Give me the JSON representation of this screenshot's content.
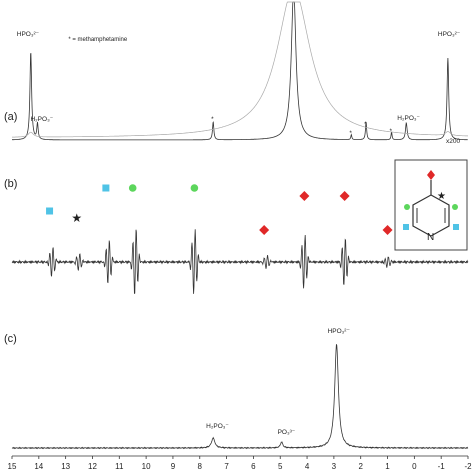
{
  "chart_data": [
    {
      "panel": "(a)",
      "type": "line",
      "annotations": [
        {
          "text": "HPO₃²⁻",
          "ppm": 14.3
        },
        {
          "text": "H₂PO₃⁻",
          "ppm": 14.0
        },
        {
          "text": "* = methamphetamine",
          "ppm": 12.9
        },
        {
          "text": "*",
          "ppm": 7.5
        },
        {
          "text": "*",
          "ppm": 2.35
        },
        {
          "text": "*",
          "ppm": 1.8
        },
        {
          "text": "*",
          "ppm": 0.85
        },
        {
          "text": "H₂PO₃⁻",
          "ppm": 0.3
        },
        {
          "text": "HPO₃²⁻",
          "ppm": -1.25
        }
      ],
      "scale_label": "x200",
      "peaks_ppm": [
        14.3,
        14.0,
        7.5,
        4.5,
        2.35,
        1.8,
        0.85,
        0.3,
        -1.25
      ]
    },
    {
      "panel": "(b)",
      "type": "line",
      "signals_ppm": [
        13.5,
        12.5,
        11.4,
        10.4,
        8.2,
        5.5,
        4.1,
        2.6,
        1.0
      ],
      "markers": [
        {
          "shape": "square",
          "color": "#4fc3e6",
          "ppm": 13.6
        },
        {
          "shape": "star",
          "color": "#999999",
          "ppm": 12.6
        },
        {
          "shape": "square",
          "color": "#4fc3e6",
          "ppm": 11.5
        },
        {
          "shape": "circle",
          "color": "#5cd65c",
          "ppm": 10.5
        },
        {
          "shape": "circle",
          "color": "#5cd65c",
          "ppm": 8.2
        },
        {
          "shape": "diamond",
          "color": "#e02828",
          "ppm": 5.6
        },
        {
          "shape": "diamond",
          "color": "#e02828",
          "ppm": 4.1
        },
        {
          "shape": "diamond",
          "color": "#e02828",
          "ppm": 2.6
        },
        {
          "shape": "diamond",
          "color": "#e02828",
          "ppm": 1.0
        }
      ],
      "inset_label": "N"
    },
    {
      "panel": "(c)",
      "type": "line",
      "annotations": [
        {
          "text": "H₂PO₃⁻",
          "ppm": 7.5
        },
        {
          "text": "PO₃³⁻",
          "ppm": 4.95
        },
        {
          "text": "HPO₃²⁻",
          "ppm": 2.9
        }
      ],
      "peaks_ppm": [
        7.5,
        4.95,
        2.9
      ],
      "x_axis": {
        "xlim": [
          15,
          -2
        ],
        "ticks": [
          15,
          14,
          13,
          12,
          11,
          10,
          9,
          8,
          7,
          6,
          5,
          4,
          3,
          2,
          1,
          0,
          -1,
          -2
        ],
        "tick_labels": [
          "15",
          "14",
          "13",
          "12",
          "11",
          "10",
          "9",
          "8",
          "7",
          "6",
          "5",
          "4",
          "3",
          "2",
          "1",
          "0",
          "-1",
          "-2"
        ]
      }
    }
  ],
  "colors": {
    "trace": "#333333",
    "inset_trace": "#aaaaaa",
    "square": "#4fc3e6",
    "circle": "#5cd65c",
    "diamond": "#e02828",
    "star": "#999999"
  }
}
